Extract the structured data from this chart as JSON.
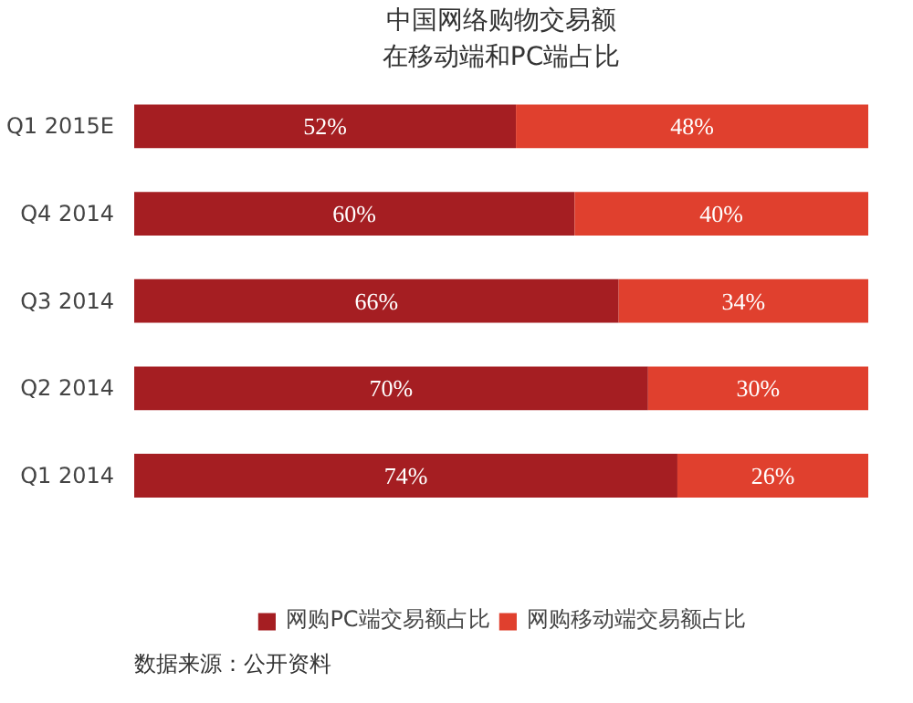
{
  "chart_data": {
    "type": "bar",
    "orientation": "horizontal",
    "stacked": true,
    "xlim": [
      0,
      100
    ],
    "tick_labels": "y",
    "title": "中国网络购物交易额",
    "subtitle": "在移动端和PC端占比",
    "categories": [
      "Q1 2015E",
      "Q4 2014",
      "Q3 2014",
      "Q2 2014",
      "Q1 2014"
    ],
    "series": [
      {
        "name": "网购PC端交易额占比",
        "color": "#a51e22",
        "values": [
          52,
          60,
          66,
          70,
          74
        ],
        "value_labels": [
          "52%",
          "60%",
          "66%",
          "70%",
          "74%"
        ]
      },
      {
        "name": "网购移动端交易额占比",
        "color": "#e0402e",
        "values": [
          48,
          40,
          34,
          30,
          26
        ],
        "value_labels": [
          "48%",
          "40%",
          "34%",
          "30%",
          "26%"
        ]
      }
    ],
    "legend": "bottom",
    "grid": false,
    "annotations": [
      "数据来源：公开资料"
    ]
  }
}
